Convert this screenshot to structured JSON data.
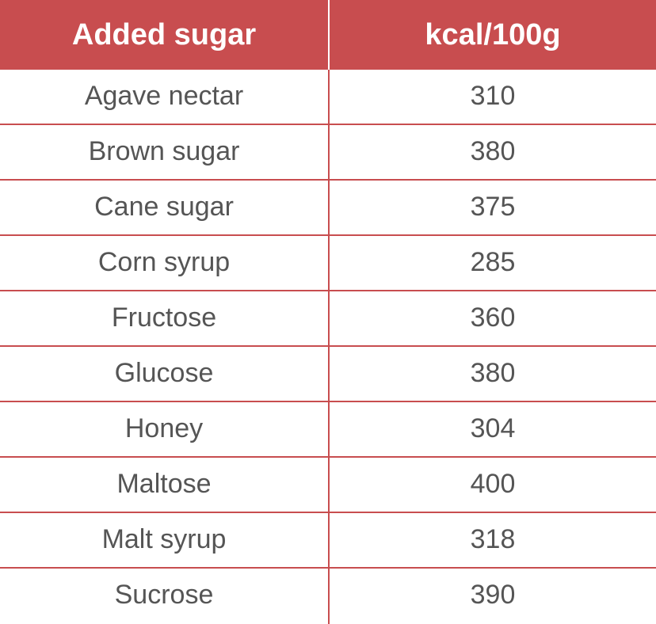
{
  "chart_data": {
    "type": "table",
    "columns": [
      "Added sugar",
      "kcal/100g"
    ],
    "rows": [
      [
        "Agave nectar",
        "310"
      ],
      [
        "Brown sugar",
        "380"
      ],
      [
        "Cane sugar",
        "375"
      ],
      [
        "Corn syrup",
        "285"
      ],
      [
        "Fructose",
        "360"
      ],
      [
        "Glucose",
        "380"
      ],
      [
        "Honey",
        "304"
      ],
      [
        "Maltose",
        "400"
      ],
      [
        "Malt syrup",
        "318"
      ],
      [
        "Sucrose",
        "390"
      ]
    ]
  },
  "colors": {
    "header_bg": "#c84d4f",
    "header_text": "#ffffff",
    "cell_text": "#555555",
    "rule": "#c84d4f"
  }
}
